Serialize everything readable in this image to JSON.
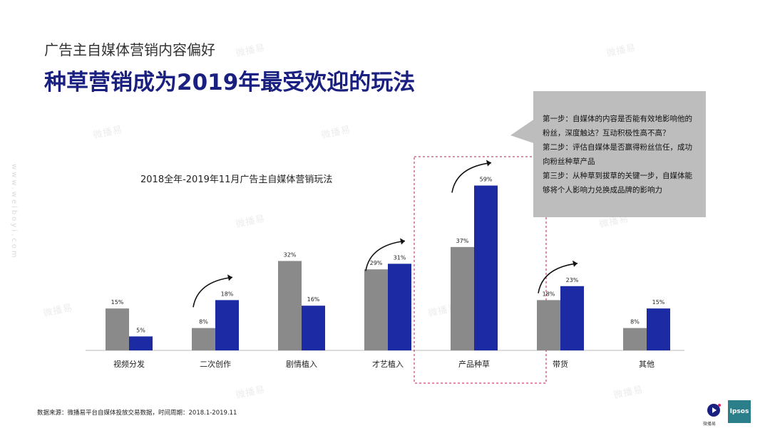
{
  "watermark": {
    "text": "微播易",
    "side_text": "www.weiboyi.com"
  },
  "header": {
    "subtitle": "广告主自媒体营销内容偏好",
    "title": "种草营销成为2019年最受欢迎的玩法"
  },
  "callout": {
    "lines": [
      "第一步：自媒体的内容是否能有效地影响他的粉丝，深度触达？互动积极性高不高？",
      "第二步：评估自媒体是否赢得粉丝信任，成功向粉丝种草产品",
      "第三步：从种草到拔草的关键一步，自媒体能够将个人影响力兑换成品牌的影响力"
    ]
  },
  "source": "数据来源：微播易平台自媒体投放交易数据，时间周期：2018.1-2019.11",
  "logos": {
    "ipsos": "Ipsos",
    "weiboyi": "微播易"
  },
  "colors": {
    "gray": "#8a8a8a",
    "blue": "#1c2aa3",
    "highlight_border": "#c2185b",
    "title": "#1a2080"
  },
  "chart_data": {
    "type": "bar",
    "title": "2018全年-2019年11月广告主自媒体营销玩法",
    "categories": [
      "视频分发",
      "二次创作",
      "剧情植入",
      "才艺植入",
      "产品种草",
      "带货",
      "其他"
    ],
    "series": [
      {
        "values": [
          15,
          8,
          32,
          29,
          37,
          18,
          8
        ],
        "labels": [
          "15%",
          "8%",
          "32%",
          "29%",
          "37%",
          "18%",
          "8%"
        ]
      },
      {
        "values": [
          5,
          18,
          16,
          31,
          59,
          23,
          15
        ],
        "labels": [
          "5%",
          "18%",
          "16%",
          "31%",
          "59%",
          "23%",
          "15%"
        ]
      }
    ],
    "ylim": [
      0,
      65
    ],
    "highlight_category": "产品种草",
    "arrows_on": [
      "二次创作",
      "才艺植入",
      "产品种草",
      "带货"
    ],
    "grid": false
  }
}
